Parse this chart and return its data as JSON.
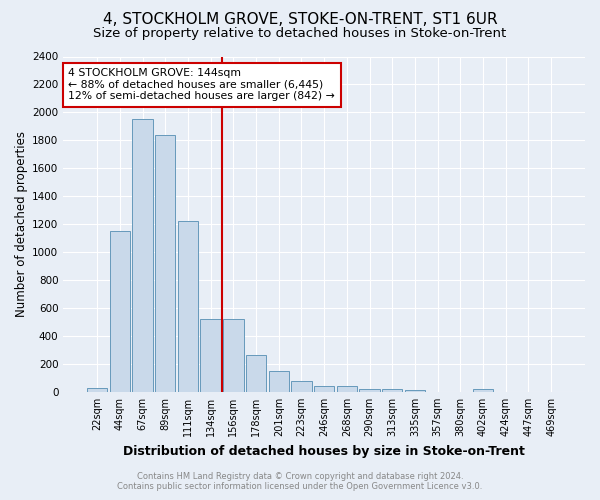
{
  "title": "4, STOCKHOLM GROVE, STOKE-ON-TRENT, ST1 6UR",
  "subtitle": "Size of property relative to detached houses in Stoke-on-Trent",
  "xlabel": "Distribution of detached houses by size in Stoke-on-Trent",
  "ylabel": "Number of detached properties",
  "categories": [
    "22sqm",
    "44sqm",
    "67sqm",
    "89sqm",
    "111sqm",
    "134sqm",
    "156sqm",
    "178sqm",
    "201sqm",
    "223sqm",
    "246sqm",
    "268sqm",
    "290sqm",
    "313sqm",
    "335sqm",
    "357sqm",
    "380sqm",
    "402sqm",
    "424sqm",
    "447sqm",
    "469sqm"
  ],
  "values": [
    30,
    1150,
    1950,
    1840,
    1220,
    520,
    520,
    265,
    150,
    80,
    45,
    40,
    20,
    20,
    15,
    0,
    0,
    20,
    0,
    0,
    0
  ],
  "bar_color": "#c9d9ea",
  "bar_edge_color": "#6699bb",
  "annotation_line1": "4 STOCKHOLM GROVE: 144sqm",
  "annotation_line2": "← 88% of detached houses are smaller (6,445)",
  "annotation_line3": "12% of semi-detached houses are larger (842) →",
  "annotation_box_color": "#ffffff",
  "annotation_box_edge": "#cc0000",
  "red_line_color": "#cc0000",
  "ylim": [
    0,
    2400
  ],
  "yticks": [
    0,
    200,
    400,
    600,
    800,
    1000,
    1200,
    1400,
    1600,
    1800,
    2000,
    2200,
    2400
  ],
  "footer_line1": "Contains HM Land Registry data © Crown copyright and database right 2024.",
  "footer_line2": "Contains public sector information licensed under the Open Government Licence v3.0.",
  "background_color": "#e8eef6",
  "plot_bg_color": "#e8eef6",
  "title_fontsize": 11,
  "subtitle_fontsize": 9.5,
  "xlabel_fontsize": 9,
  "ylabel_fontsize": 8.5
}
